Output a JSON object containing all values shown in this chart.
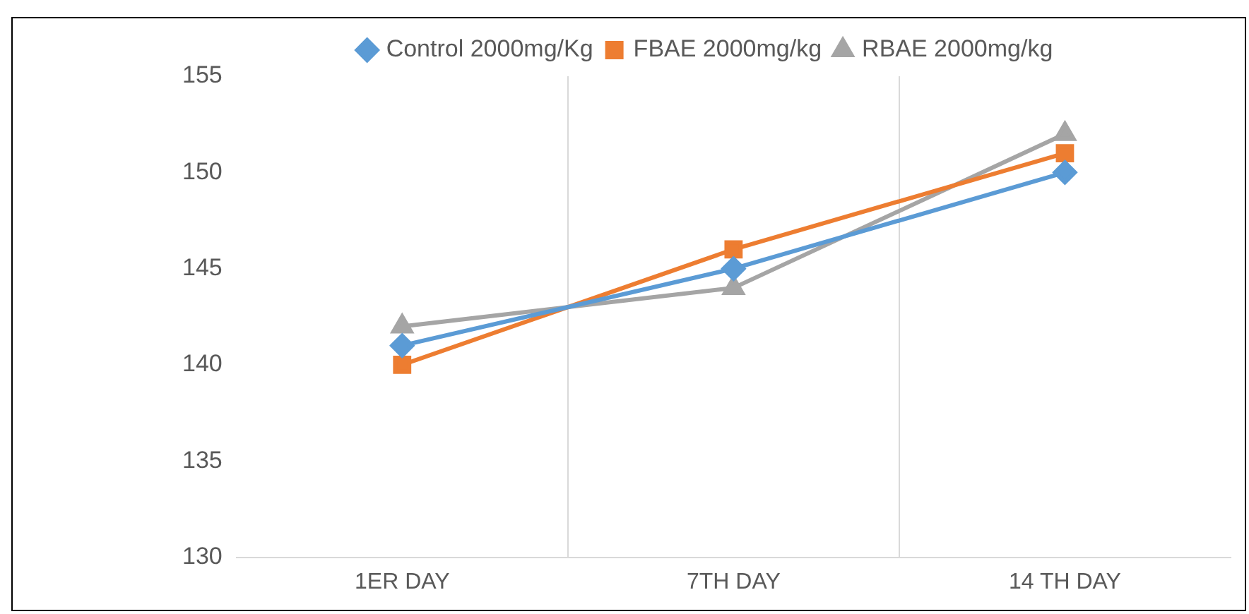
{
  "chart_data": {
    "type": "line",
    "categories": [
      "1ER DAY",
      "7TH DAY",
      "14 TH DAY"
    ],
    "series": [
      {
        "name": "Control 2000mg/Kg",
        "color": "#5b9bd5",
        "marker": "diamond",
        "values": [
          141,
          145,
          150
        ]
      },
      {
        "name": "FBAE 2000mg/kg",
        "color": "#ed7d31",
        "marker": "square",
        "values": [
          140,
          146,
          151
        ]
      },
      {
        "name": "RBAE 2000mg/kg",
        "color": "#a5a5a5",
        "marker": "triangle",
        "values": [
          142,
          144,
          152
        ]
      }
    ],
    "ylim": [
      130,
      155
    ],
    "yticks": [
      130,
      135,
      140,
      145,
      150,
      155
    ],
    "grid": "x",
    "legend": "top",
    "line_style": "solid"
  }
}
